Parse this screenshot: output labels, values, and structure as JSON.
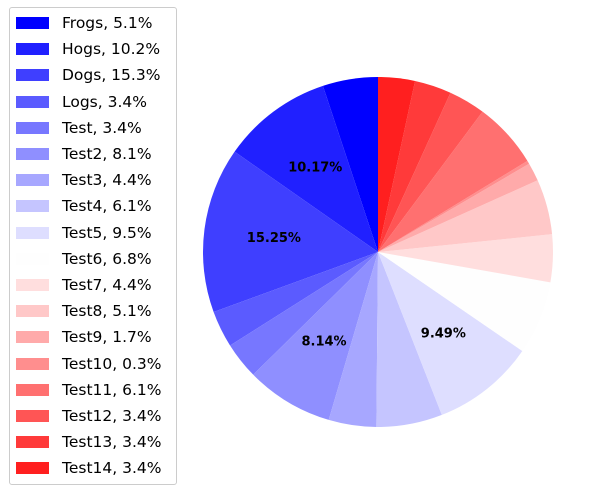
{
  "chart_data": {
    "type": "pie",
    "start": "top",
    "direction": "clockwise-in-drawing-order",
    "legend_placement": "left",
    "slices": [
      {
        "label": "Frogs",
        "percent": 5.1,
        "legend": "Frogs, 5.1%",
        "color": "#0000ff",
        "annotation": ""
      },
      {
        "label": "Hogs",
        "percent": 10.2,
        "legend": "Hogs, 10.2%",
        "color": "#2020ff",
        "annotation": "10.17%"
      },
      {
        "label": "Dogs",
        "percent": 15.3,
        "legend": "Dogs, 15.3%",
        "color": "#3f3fff",
        "annotation": "15.25%"
      },
      {
        "label": "Logs",
        "percent": 3.4,
        "legend": "Logs, 3.4%",
        "color": "#5b5bff",
        "annotation": ""
      },
      {
        "label": "Test",
        "percent": 3.4,
        "legend": "Test, 3.4%",
        "color": "#7777ff",
        "annotation": ""
      },
      {
        "label": "Test2",
        "percent": 8.1,
        "legend": "Test2, 8.1%",
        "color": "#8f8fff",
        "annotation": "8.14%"
      },
      {
        "label": "Test3",
        "percent": 4.4,
        "legend": "Test3, 4.4%",
        "color": "#a7a7ff",
        "annotation": ""
      },
      {
        "label": "Test4",
        "percent": 6.1,
        "legend": "Test4, 6.1%",
        "color": "#c5c5ff",
        "annotation": ""
      },
      {
        "label": "Test5",
        "percent": 9.5,
        "legend": "Test5, 9.5%",
        "color": "#dedeff",
        "annotation": "9.49%"
      },
      {
        "label": "Test6",
        "percent": 6.8,
        "legend": "Test6, 6.8%",
        "color": "#fefefe",
        "annotation": ""
      },
      {
        "label": "Test7",
        "percent": 4.4,
        "legend": "Test7, 4.4%",
        "color": "#ffdede",
        "annotation": ""
      },
      {
        "label": "Test8",
        "percent": 5.1,
        "legend": "Test8, 5.1%",
        "color": "#ffc8c8",
        "annotation": ""
      },
      {
        "label": "Test9",
        "percent": 1.7,
        "legend": "Test9, 1.7%",
        "color": "#ffaaaa",
        "annotation": ""
      },
      {
        "label": "Test10",
        "percent": 0.3,
        "legend": "Test10, 0.3%",
        "color": "#ff8e8e",
        "annotation": ""
      },
      {
        "label": "Test11",
        "percent": 6.1,
        "legend": "Test11, 6.1%",
        "color": "#ff7070",
        "annotation": ""
      },
      {
        "label": "Test12",
        "percent": 3.4,
        "legend": "Test12, 3.4%",
        "color": "#ff5555",
        "annotation": ""
      },
      {
        "label": "Test13",
        "percent": 3.4,
        "legend": "Test13, 3.4%",
        "color": "#ff3a3a",
        "annotation": ""
      },
      {
        "label": "Test14",
        "percent": 3.4,
        "legend": "Test14, 3.4%",
        "color": "#ff1f1f",
        "annotation": ""
      }
    ]
  }
}
